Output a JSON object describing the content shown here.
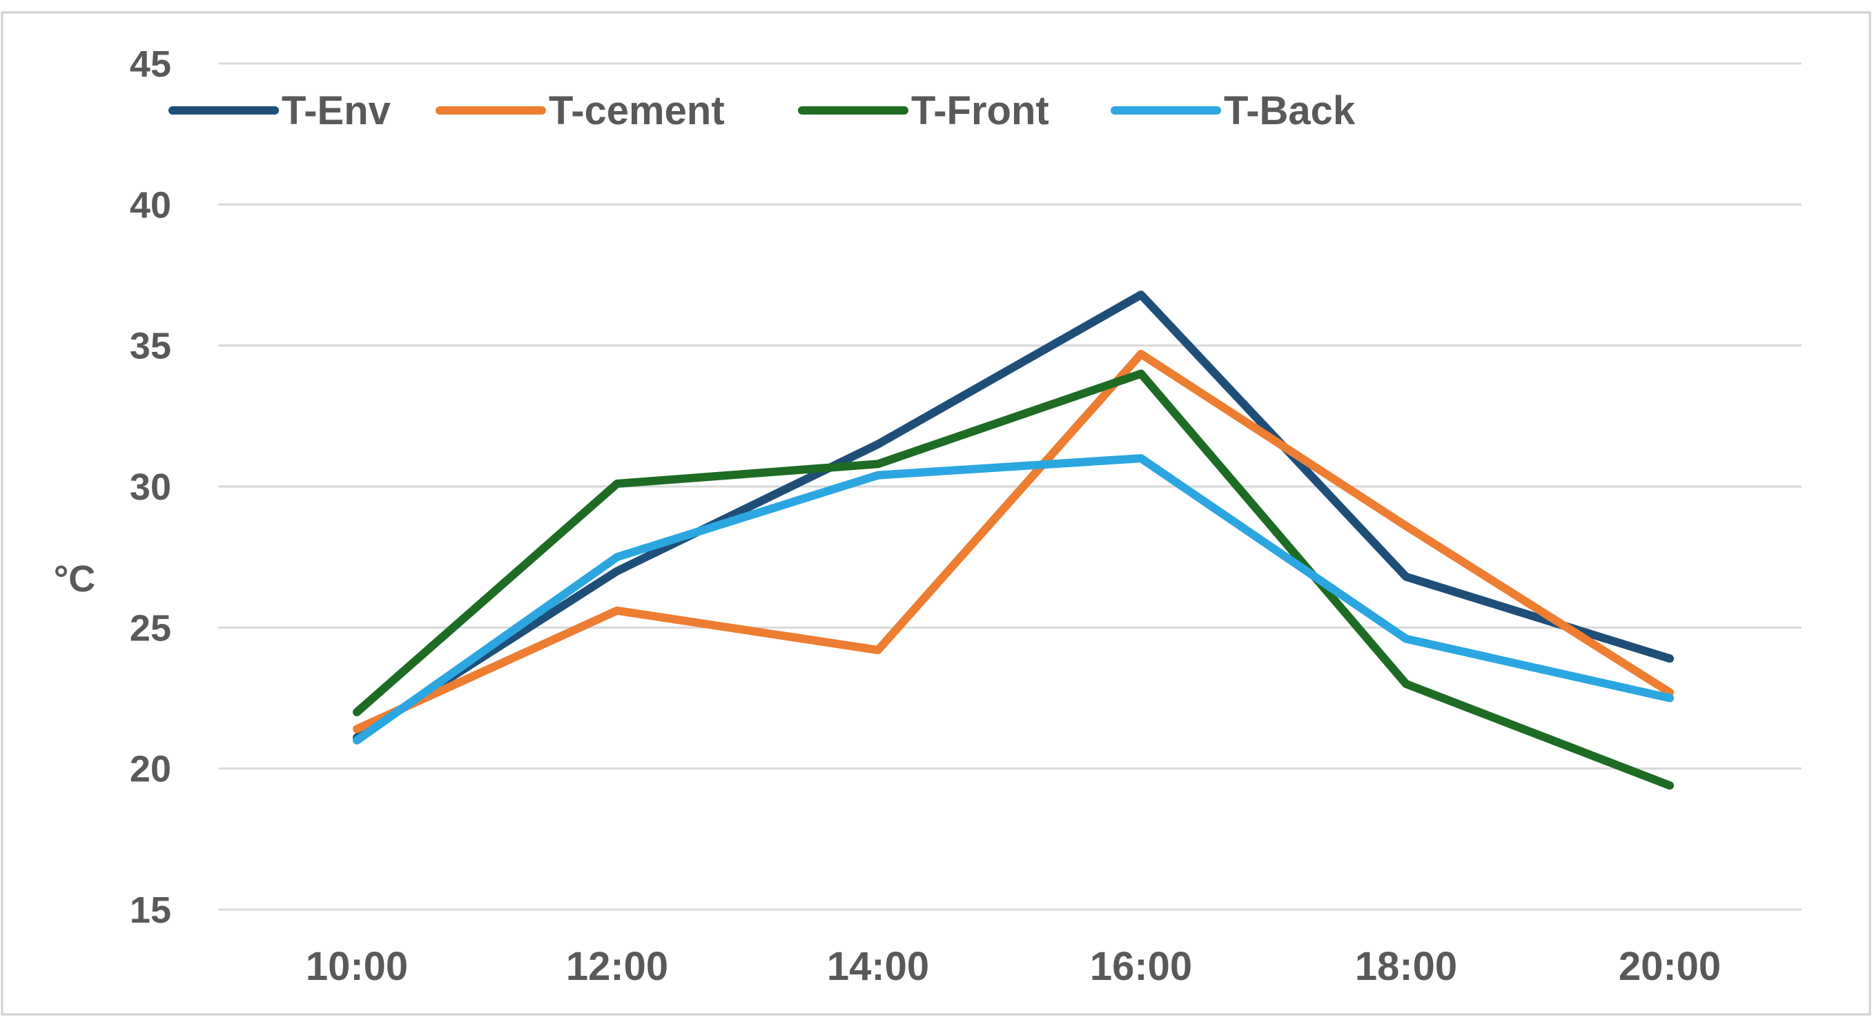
{
  "chart_data": {
    "type": "line",
    "title": "",
    "xlabel": "",
    "ylabel": "°C",
    "categories": [
      "10:00",
      "12:00",
      "14:00",
      "16:00",
      "18:00",
      "20:00"
    ],
    "ylim": [
      15,
      45
    ],
    "yticks": [
      "15",
      "20",
      "25",
      "30",
      "35",
      "40",
      "45"
    ],
    "grid": true,
    "legend_position": "top-left",
    "series": [
      {
        "name": "T-Env",
        "color": "#1f4e79",
        "values": [
          21.1,
          27.0,
          31.5,
          36.8,
          26.8,
          23.9
        ]
      },
      {
        "name": "T-cement",
        "color": "#ed7d31",
        "values": [
          21.4,
          25.6,
          24.2,
          34.7,
          28.6,
          22.7
        ]
      },
      {
        "name": "T-Front",
        "color": "#1e6b24",
        "values": [
          22.0,
          30.1,
          30.8,
          34.0,
          23.0,
          19.4
        ]
      },
      {
        "name": "T-Back",
        "color": "#2ba6e0",
        "values": [
          21.0,
          27.5,
          30.4,
          31.0,
          24.6,
          22.5
        ]
      }
    ]
  }
}
